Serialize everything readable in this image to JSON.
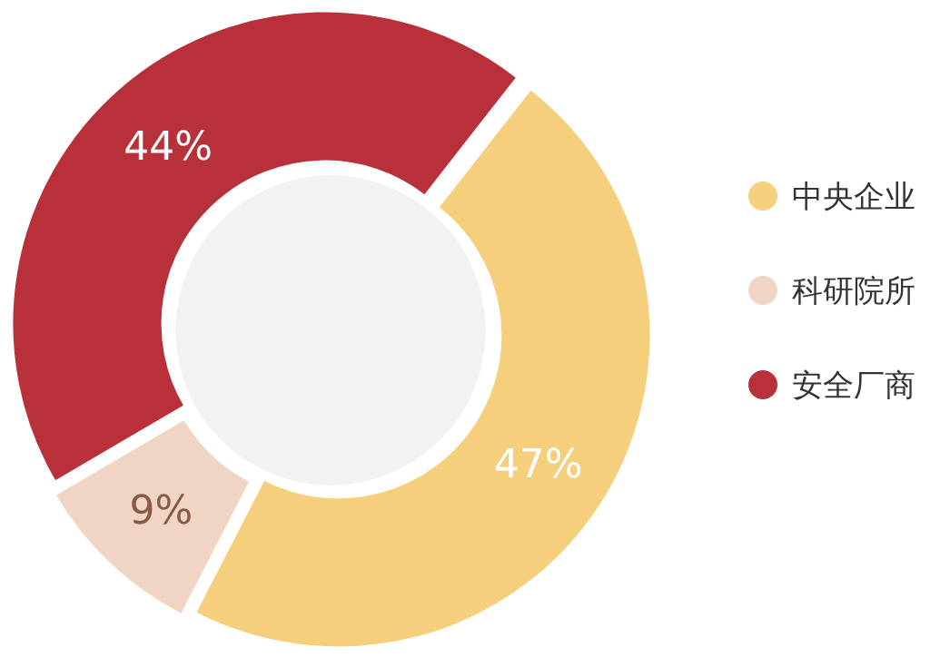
{
  "chart_data": {
    "type": "donut",
    "categories": [
      "中央企业",
      "科研院所",
      "安全厂商"
    ],
    "values": [
      47,
      9,
      44
    ],
    "colors": [
      "#f5cf7c",
      "#f0d5c5",
      "#b8313a"
    ],
    "value_labels": [
      "47%",
      "9%",
      "44%"
    ],
    "legend": "right"
  }
}
